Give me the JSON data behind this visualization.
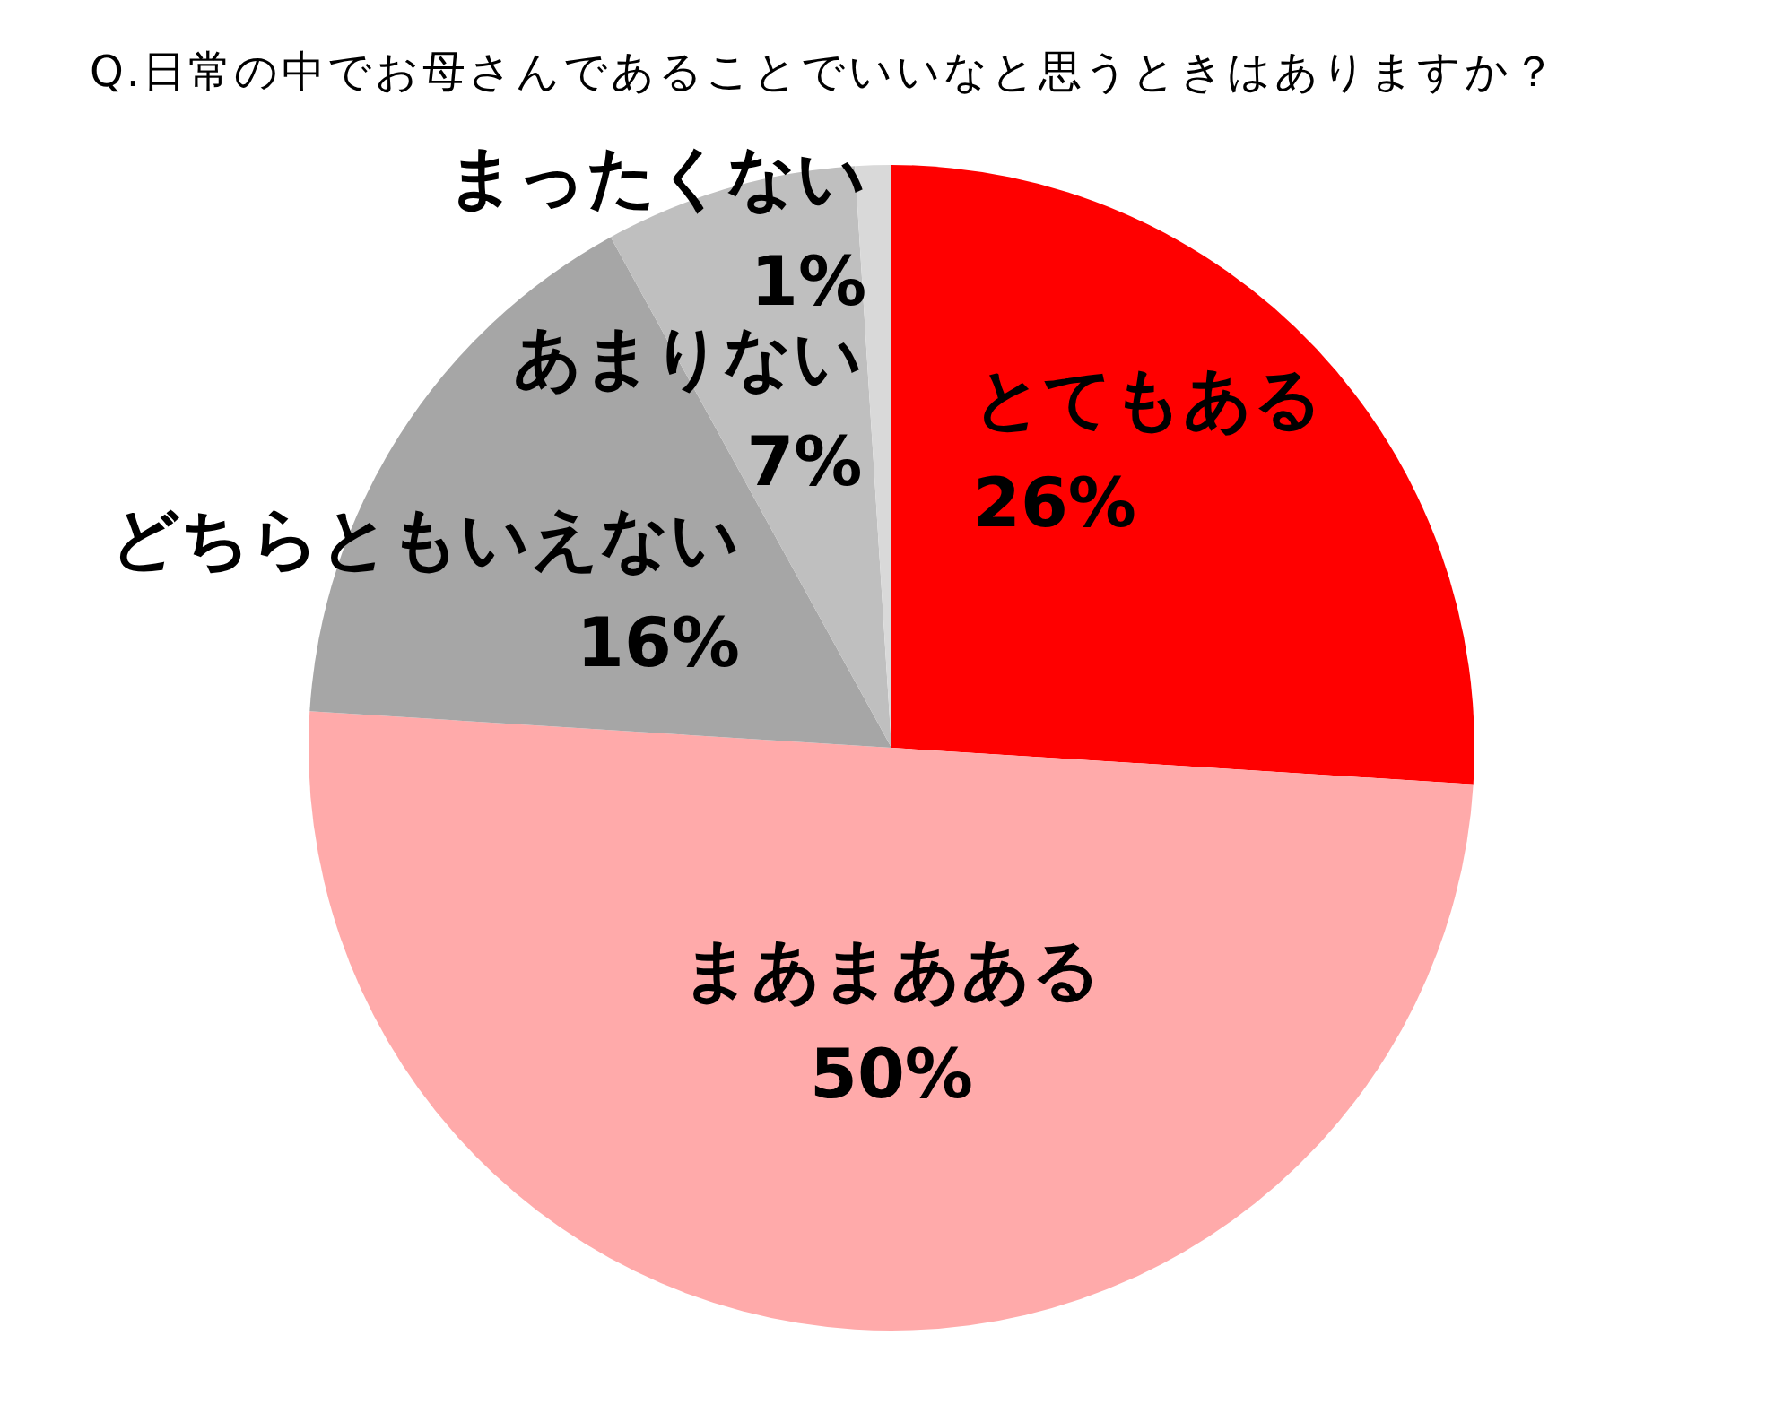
{
  "chart_data": {
    "type": "pie",
    "title": "Q.日常の中でお母さんであることでいいなと思うときはありますか？",
    "categories": [
      "とてもある",
      "まあまあある",
      "どちらともいえない",
      "あまりない",
      "まったくない"
    ],
    "values": [
      26,
      50,
      16,
      7,
      1
    ],
    "colors": [
      "#ff0000",
      "#ffaaaa",
      "#a6a6a6",
      "#bfbfbf",
      "#d9d9d9"
    ],
    "value_labels": [
      "26%",
      "50%",
      "16%",
      "7%",
      "1%"
    ]
  }
}
